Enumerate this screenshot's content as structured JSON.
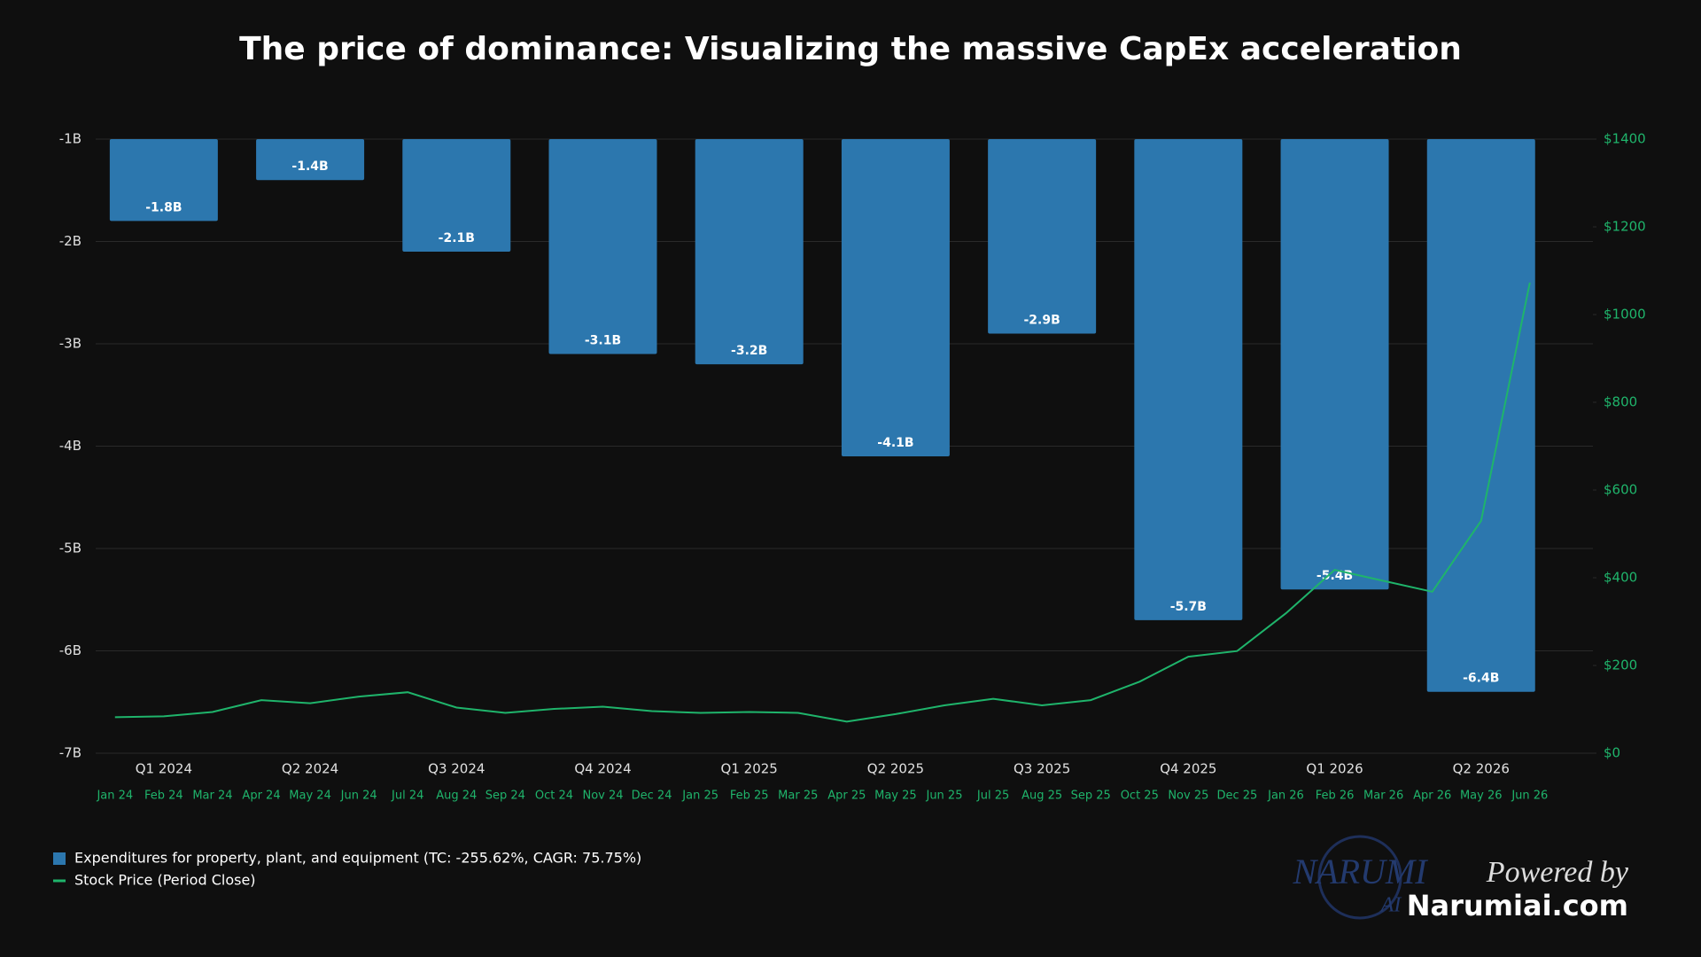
{
  "chart_data": {
    "type": "bar",
    "title": "The price of dominance: Visualizing the massive CapEx acceleration",
    "categories": [
      "Q1 2024",
      "Q2 2024",
      "Q3 2024",
      "Q4 2024",
      "Q1 2025",
      "Q2 2025",
      "Q3 2025",
      "Q4 2025",
      "Q1 2026",
      "Q2 2026"
    ],
    "series": [
      {
        "name": "Expenditures for property, plant, and equipment (TC: -255.62%, CAGR: 75.75%)",
        "type": "bar",
        "color": "#2c77ae",
        "values": [
          -1.8,
          -1.4,
          -2.1,
          -3.1,
          -3.2,
          -4.1,
          -2.9,
          -5.7,
          -5.4,
          -6.4
        ],
        "value_labels": [
          "-1.8B",
          "-1.4B",
          "-2.1B",
          "-3.1B",
          "-3.2B",
          "-4.1B",
          "-2.9B",
          "-5.7B",
          "-5.4B",
          "-6.4B"
        ]
      },
      {
        "name": "Stock Price (Period Close)",
        "type": "line",
        "axis": "y2",
        "color": "#1fb46b",
        "x": [
          "Jan 24",
          "Feb 24",
          "Mar 24",
          "Apr 24",
          "May 24",
          "Jun 24",
          "Jul 24",
          "Aug 24",
          "Sep 24",
          "Oct 24",
          "Nov 24",
          "Dec 24",
          "Jan 25",
          "Feb 25",
          "Mar 25",
          "Apr 25",
          "May 25",
          "Jun 25",
          "Jul 25",
          "Aug 25",
          "Sep 25",
          "Oct 25",
          "Nov 25",
          "Dec 25",
          "Jan 26",
          "Feb 26",
          "Mar 26",
          "Apr 26",
          "May 26",
          "Jun 26"
        ],
        "values": [
          82,
          84,
          94,
          121,
          114,
          129,
          139,
          104,
          92,
          101,
          106,
          96,
          92,
          94,
          92,
          72,
          89,
          109,
          124,
          109,
          121,
          163,
          220,
          233,
          319,
          418,
          393,
          368,
          530,
          1073
        ]
      }
    ],
    "ylim": [
      -7,
      -1
    ],
    "yticks": [
      {
        "value": -1,
        "label": "-1B"
      },
      {
        "value": -2,
        "label": "-2B"
      },
      {
        "value": -3,
        "label": "-3B"
      },
      {
        "value": -4,
        "label": "-4B"
      },
      {
        "value": -5,
        "label": "-5B"
      },
      {
        "value": -6,
        "label": "-6B"
      },
      {
        "value": -7,
        "label": "-7B"
      }
    ],
    "y2lim": [
      0,
      1400
    ],
    "y2ticks": [
      {
        "value": 0,
        "label": "$0"
      },
      {
        "value": 200,
        "label": "$200"
      },
      {
        "value": 400,
        "label": "$400"
      },
      {
        "value": 600,
        "label": "$600"
      },
      {
        "value": 800,
        "label": "$800"
      },
      {
        "value": 1000,
        "label": "$1000"
      },
      {
        "value": 1200,
        "label": "$1200"
      },
      {
        "value": 1400,
        "label": "$1400"
      }
    ],
    "grid": true,
    "legend": "bottom-left"
  },
  "branding": {
    "logo": "NARUMI",
    "logo_sub": "AI",
    "powered": "Powered by",
    "site": "Narumiai.com"
  }
}
